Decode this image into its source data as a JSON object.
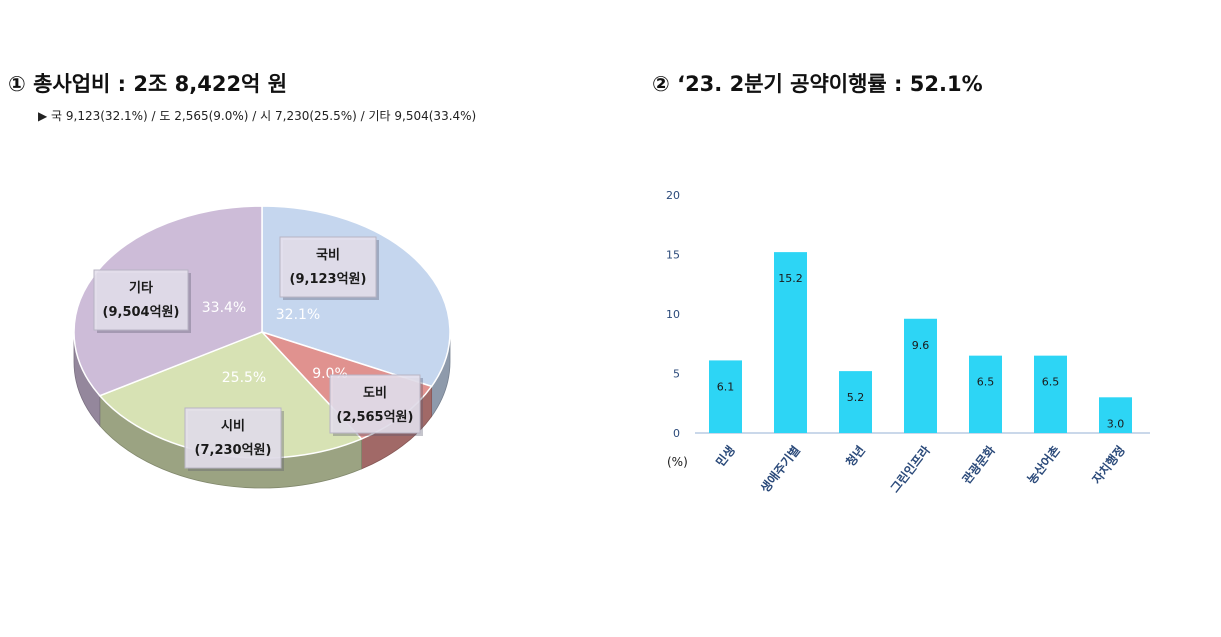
{
  "left": {
    "title": "① 총사업비 : 2조 8,422억 원",
    "subtitle": "▶ 국 9,123(32.1%) / 도 2,565(9.0%) / 시 7,230(25.5%) / 기타 9,504(33.4%)"
  },
  "right": {
    "title": "② ‘23. 2분기 공약이행률 : 52.1%"
  },
  "chart_data": [
    {
      "type": "pie",
      "title": "① 총사업비 : 2조 8,422억 원",
      "slices": [
        {
          "name": "국비",
          "label": "(9,123억원)",
          "value": 9123,
          "percent": "32.1%",
          "color": "#c5d6ee"
        },
        {
          "name": "도비",
          "label": "(2,565억원)",
          "value": 2565,
          "percent": "9.0%",
          "color": "#e0928f"
        },
        {
          "name": "시비",
          "label": "(7,230억원)",
          "value": 7230,
          "percent": "25.5%",
          "color": "#d7e2b4"
        },
        {
          "name": "기타",
          "label": "(9,504억원)",
          "value": 9504,
          "percent": "33.4%",
          "color": "#cdbcd8"
        }
      ]
    },
    {
      "type": "bar",
      "title": "② ‘23. 2분기 공약이행률 : 52.1%",
      "ylabel": "(%)",
      "ylim": [
        0,
        20
      ],
      "yticks": [
        "0",
        "5",
        "10",
        "15",
        "20"
      ],
      "categories": [
        "민생",
        "생애주기별",
        "청년",
        "그린인프라",
        "관광문화",
        "농산어촌",
        "자치행정"
      ],
      "values": [
        6.1,
        15.2,
        5.2,
        9.6,
        6.5,
        6.5,
        3.0
      ],
      "value_labels": [
        "6.1",
        "15.2",
        "5.2",
        "9.6",
        "6.5",
        "6.5",
        "3.0"
      ],
      "color": "#2dd5f5",
      "grid": false
    }
  ]
}
